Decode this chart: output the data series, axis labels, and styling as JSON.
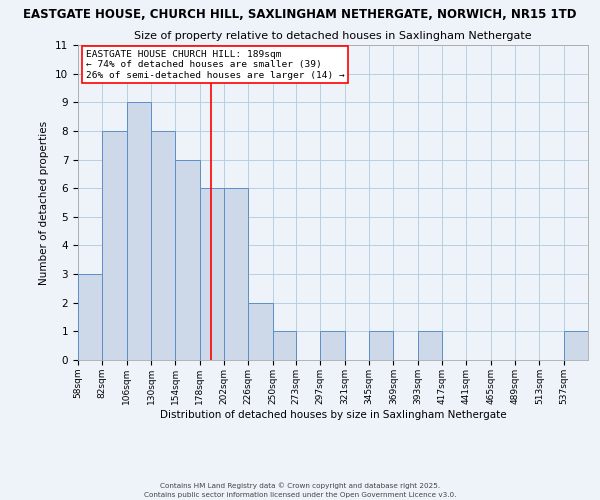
{
  "title1": "EASTGATE HOUSE, CHURCH HILL, SAXLINGHAM NETHERGATE, NORWICH, NR15 1TD",
  "title2": "Size of property relative to detached houses in Saxlingham Nethergate",
  "xlabel": "Distribution of detached houses by size in Saxlingham Nethergate",
  "ylabel": "Number of detached properties",
  "bin_edges": [
    58,
    82,
    106,
    130,
    154,
    178,
    202,
    226,
    250,
    273,
    297,
    321,
    345,
    369,
    393,
    417,
    441,
    465,
    489,
    513,
    537,
    561
  ],
  "bin_labels": [
    "58sqm",
    "82sqm",
    "106sqm",
    "130sqm",
    "154sqm",
    "178sqm",
    "202sqm",
    "226sqm",
    "250sqm",
    "273sqm",
    "297sqm",
    "321sqm",
    "345sqm",
    "369sqm",
    "393sqm",
    "417sqm",
    "441sqm",
    "465sqm",
    "489sqm",
    "513sqm",
    "537sqm"
  ],
  "counts": [
    3,
    8,
    9,
    8,
    7,
    6,
    6,
    2,
    1,
    0,
    1,
    0,
    1,
    0,
    1,
    0,
    0,
    0,
    0,
    0,
    1
  ],
  "bar_facecolor": "#cdd9e8",
  "bar_edgecolor": "#5b8fc7",
  "grid_color": "#b8cfe0",
  "background_color": "#eef2f9",
  "red_line_x": 189,
  "ylim": [
    0,
    11
  ],
  "yticks": [
    0,
    1,
    2,
    3,
    4,
    5,
    6,
    7,
    8,
    9,
    10,
    11
  ],
  "annotation_title": "EASTGATE HOUSE CHURCH HILL: 189sqm",
  "annotation_line1": "← 74% of detached houses are smaller (39)",
  "annotation_line2": "26% of semi-detached houses are larger (14) →",
  "footer1": "Contains HM Land Registry data © Crown copyright and database right 2025.",
  "footer2": "Contains public sector information licensed under the Open Government Licence v3.0."
}
